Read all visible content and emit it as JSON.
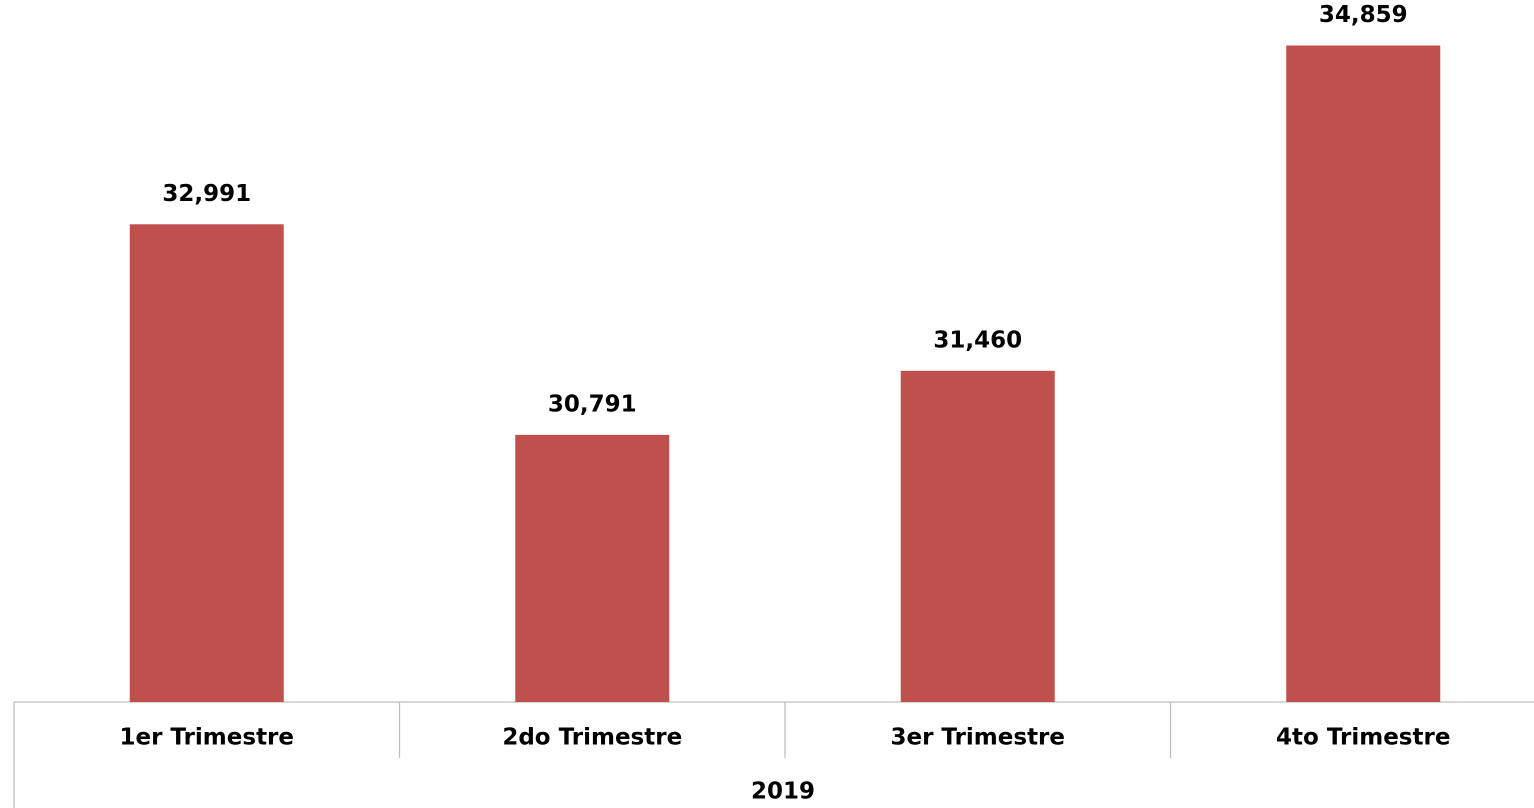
{
  "chart_data": {
    "type": "bar",
    "categories": [
      "1er Trimestre",
      "2do Trimestre",
      "3er Trimestre",
      "4to Trimestre"
    ],
    "group_label": "2019",
    "values": [
      32991,
      30791,
      31460,
      34859
    ],
    "value_labels": [
      "32,991",
      "30,791",
      "31,460",
      "34,859"
    ],
    "color": "#c0504d",
    "ylim": [
      28000,
      35000
    ]
  }
}
